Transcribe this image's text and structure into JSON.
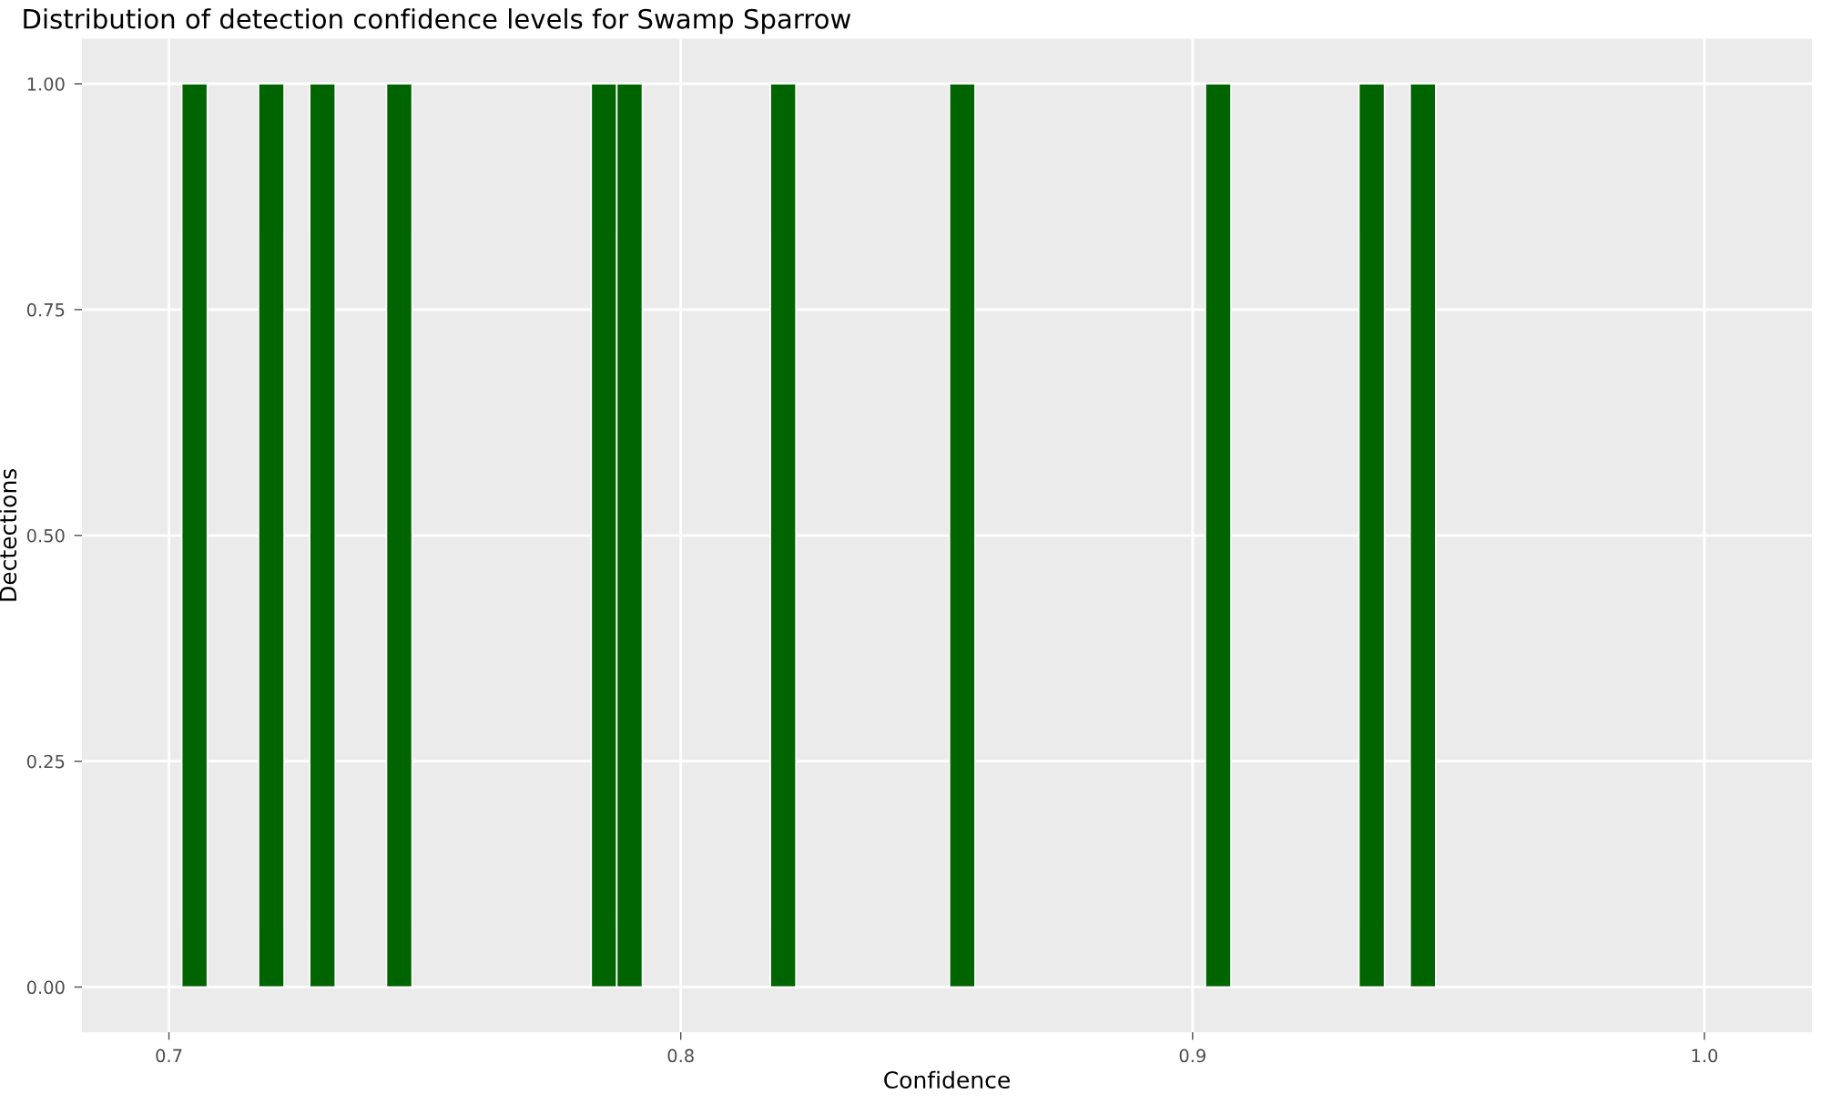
{
  "chart_data": {
    "type": "histogram",
    "title": "Distribution of detection confidence levels for Swamp Sparrow",
    "xlabel": "Confidence",
    "ylabel": "Dectections",
    "bins": [
      0.7025,
      0.7075,
      0.7125,
      0.7175,
      0.7225,
      0.7275,
      0.7325,
      0.7375,
      0.7425,
      0.7475,
      0.7525,
      0.7575,
      0.7625,
      0.7675,
      0.7725,
      0.7775,
      0.7825,
      0.7875,
      0.7925,
      0.7975,
      0.8025,
      0.8075,
      0.8125,
      0.8175,
      0.8225,
      0.8275,
      0.8325,
      0.8375,
      0.8425,
      0.8475,
      0.8525,
      0.8575,
      0.8625,
      0.8675,
      0.8725,
      0.8775,
      0.8825,
      0.8875,
      0.8925,
      0.8975,
      0.9025,
      0.9075,
      0.9125,
      0.9175,
      0.9225,
      0.9275,
      0.9325,
      0.9375,
      0.9425,
      0.9475
    ],
    "values": [
      1,
      0,
      0,
      1,
      0,
      1,
      0,
      0,
      1,
      0,
      0,
      0,
      0,
      0,
      0,
      0,
      1,
      1,
      0,
      0,
      0,
      0,
      0,
      1,
      0,
      0,
      0,
      0,
      0,
      0,
      1,
      0,
      0,
      0,
      0,
      0,
      0,
      0,
      0,
      0,
      1,
      0,
      0,
      0,
      0,
      0,
      1,
      0,
      1
    ],
    "color": "#006400",
    "xlim": [
      0.683,
      1.021
    ],
    "ylim": [
      -0.05,
      1.05
    ],
    "xticks": [
      0.7,
      0.8,
      0.9,
      {
        "value": 1,
        "label": "1.0"
      }
    ],
    "yticks": [
      {
        "value": 0,
        "label": "0.00"
      },
      {
        "value": 0.25,
        "label": "0.25"
      },
      {
        "value": 0.5,
        "label": "0.50"
      },
      {
        "value": 0.75,
        "label": "0.75"
      },
      {
        "value": 1,
        "label": "1.00"
      }
    ],
    "grid": true,
    "legend": false
  }
}
